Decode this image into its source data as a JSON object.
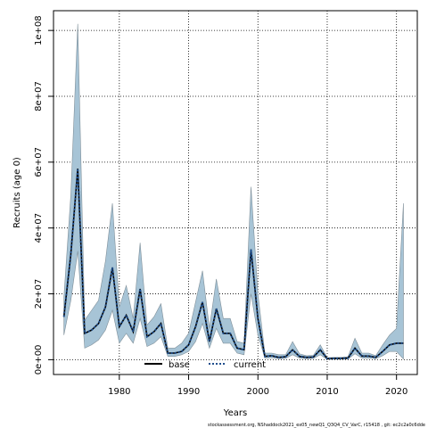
{
  "chart_data": {
    "type": "area",
    "xlabel": "Years",
    "ylabel": "Recruits (age 0)",
    "xlim": [
      1970.5,
      2023
    ],
    "ylim": [
      -4500000,
      106000000
    ],
    "x_ticks": [
      1980,
      1990,
      2000,
      2010,
      2020
    ],
    "x_tick_labels": [
      "1980",
      "1990",
      "2000",
      "2010",
      "2020"
    ],
    "y_ticks": [
      0,
      20000000,
      40000000,
      60000000,
      80000000,
      100000000
    ],
    "y_tick_labels": [
      "0e+00",
      "2e+07",
      "4e+07",
      "6e+07",
      "8e+07",
      "1e+08"
    ],
    "grid": true,
    "legend_position": "bottom-center",
    "series": [
      {
        "name": "base",
        "style": "solid",
        "x": [
          1972,
          1973,
          1974,
          1975,
          1976,
          1977,
          1978,
          1979,
          1980,
          1981,
          1982,
          1983,
          1984,
          1985,
          1986,
          1987,
          1988,
          1989,
          1990,
          1991,
          1992,
          1993,
          1994,
          1995,
          1996,
          1997,
          1998,
          1999,
          2000,
          2001,
          2002,
          2003,
          2004,
          2005,
          2006,
          2007,
          2008,
          2009,
          2010,
          2011,
          2012,
          2013,
          2014,
          2015,
          2016,
          2017,
          2018,
          2019,
          2020,
          2021
        ],
        "values": [
          13000000,
          32000000,
          58000000,
          8000000,
          9000000,
          11000000,
          16000000,
          28000000,
          10000000,
          13500000,
          8500000,
          21500000,
          7000000,
          8500000,
          11000000,
          2000000,
          2000000,
          2500000,
          4500000,
          10000000,
          17500000,
          5500000,
          15500000,
          8000000,
          8000000,
          3500000,
          3000000,
          33500000,
          12500000,
          1000000,
          1200000,
          700000,
          900000,
          3000000,
          1000000,
          700000,
          800000,
          3000000,
          300000,
          400000,
          400000,
          500000,
          3500000,
          1100000,
          1100000,
          700000,
          2500000,
          4500000,
          5000000,
          5000000
        ]
      },
      {
        "name": "current",
        "style": "dotted",
        "color": "#1f4e8c",
        "x": [
          1972,
          1973,
          1974,
          1975,
          1976,
          1977,
          1978,
          1979,
          1980,
          1981,
          1982,
          1983,
          1984,
          1985,
          1986,
          1987,
          1988,
          1989,
          1990,
          1991,
          1992,
          1993,
          1994,
          1995,
          1996,
          1997,
          1998,
          1999,
          2000,
          2001,
          2002,
          2003,
          2004,
          2005,
          2006,
          2007,
          2008,
          2009,
          2010,
          2011,
          2012,
          2013,
          2014,
          2015,
          2016,
          2017,
          2018,
          2019,
          2020,
          2021
        ],
        "values": [
          13000000,
          32000000,
          58000000,
          8000000,
          9000000,
          11000000,
          16000000,
          28000000,
          10000000,
          13500000,
          8500000,
          21500000,
          7000000,
          8500000,
          11000000,
          2000000,
          2000000,
          2500000,
          4500000,
          10000000,
          17500000,
          5500000,
          15500000,
          8000000,
          8000000,
          3500000,
          3000000,
          33500000,
          12500000,
          1000000,
          1200000,
          700000,
          900000,
          3000000,
          1000000,
          700000,
          800000,
          3000000,
          300000,
          400000,
          400000,
          500000,
          3500000,
          1100000,
          1100000,
          700000,
          2500000,
          4500000,
          5000000,
          5000000
        ]
      }
    ],
    "band": {
      "color": "#a7c4d6",
      "edge_color": "#7f8f99",
      "x": [
        1972,
        1973,
        1974,
        1975,
        1976,
        1977,
        1978,
        1979,
        1980,
        1981,
        1982,
        1983,
        1984,
        1985,
        1986,
        1987,
        1988,
        1989,
        1990,
        1991,
        1992,
        1993,
        1994,
        1995,
        1996,
        1997,
        1998,
        1999,
        2000,
        2001,
        2002,
        2003,
        2004,
        2005,
        2006,
        2007,
        2008,
        2009,
        2010,
        2011,
        2012,
        2013,
        2014,
        2015,
        2016,
        2017,
        2018,
        2019,
        2020,
        2021
      ],
      "upper": [
        19000000,
        50000000,
        102000000,
        12000000,
        15000000,
        18000000,
        30000000,
        47500000,
        16000000,
        22500000,
        12500000,
        35500000,
        10500000,
        13000000,
        17000000,
        3500000,
        3500000,
        5000000,
        8000000,
        17500000,
        27000000,
        9500000,
        24500000,
        12500000,
        12500000,
        5500000,
        5000000,
        52500000,
        20000000,
        2000000,
        2000000,
        1500000,
        1500000,
        5500000,
        1800000,
        1200000,
        1300000,
        4500000,
        600000,
        700000,
        700000,
        900000,
        6500000,
        2000000,
        2000000,
        1200000,
        4500000,
        7500000,
        9500000,
        47500000
      ]
    },
    "band_lower": [
      7500000,
      18000000,
      33000000,
      3500000,
      4500000,
      6000000,
      9000000,
      15000000,
      5000000,
      8000000,
      5000000,
      12500000,
      4000000,
      5000000,
      7000000,
      1000000,
      1000000,
      1500000,
      2500000,
      5500000,
      11000000,
      3500000,
      9500000,
      5000000,
      5000000,
      2000000,
      1500000,
      20000000,
      7500000,
      500000,
      600000,
      300000,
      400000,
      1500000,
      500000,
      300000,
      400000,
      1500000,
      100000,
      150000,
      150000,
      200000,
      1800000,
      500000,
      500000,
      300000,
      1200000,
      2500000,
      2500000,
      200000
    ]
  },
  "footer": "stockassessment.org, NShaddock2021_ex05_newQ1_Q3Q4_CV_VarC, r15418 , git: ec2c2a0c6dde"
}
